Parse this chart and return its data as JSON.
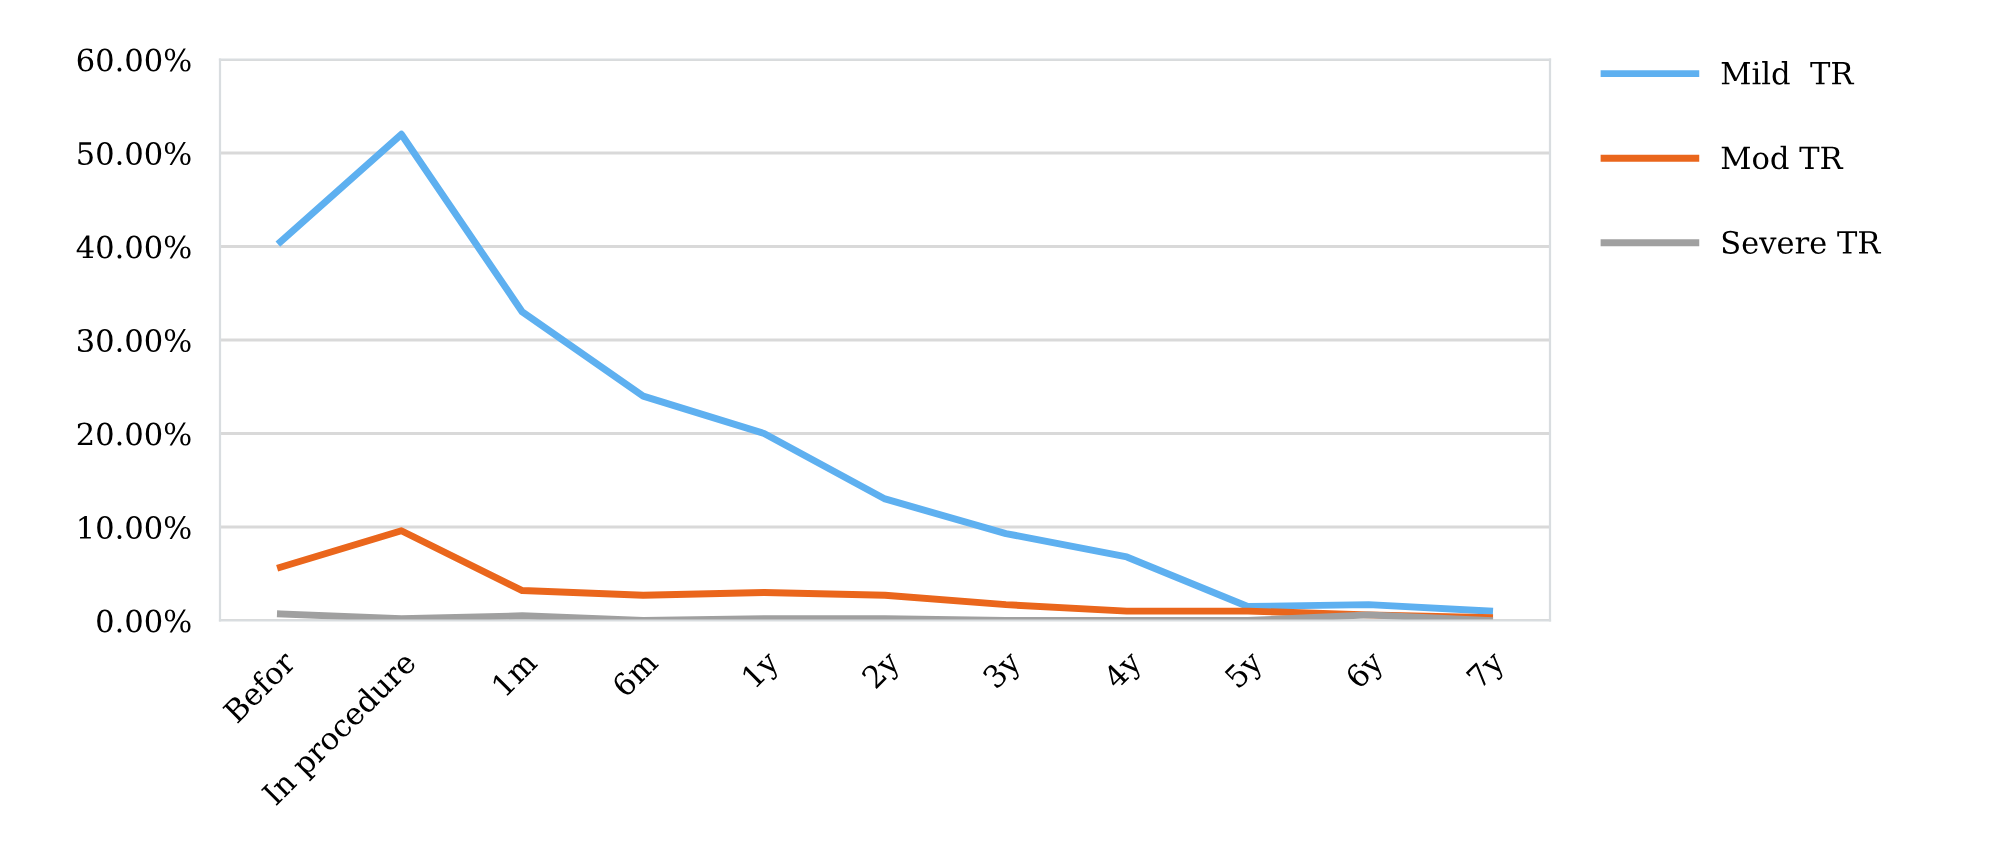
{
  "chart_data": {
    "type": "line",
    "categories": [
      "Befor",
      "In procedure",
      "1m",
      "6m",
      "1y",
      "2y",
      "3y",
      "4y",
      "5y",
      "6y",
      "7y"
    ],
    "series": [
      {
        "name": "Mild  TR",
        "color": "#5eb0f0",
        "values": [
          40.5,
          52,
          33,
          24,
          20,
          13,
          9.3,
          6.8,
          1.5,
          1.7,
          1.0
        ]
      },
      {
        "name": "Mod TR",
        "color": "#ea661c",
        "values": [
          5.7,
          9.6,
          3.2,
          2.7,
          3.0,
          2.7,
          1.7,
          1.0,
          1.0,
          0.6,
          0.3
        ]
      },
      {
        "name": "Severe TR",
        "color": "#a0a0a0",
        "values": [
          0.7,
          0.2,
          0.5,
          0.0,
          0.2,
          0.2,
          0.0,
          0.0,
          0.0,
          0.6,
          0.0
        ]
      }
    ],
    "ylim": [
      0,
      60
    ],
    "yticks": [
      {
        "value": 0,
        "label": "0.00%"
      },
      {
        "value": 10,
        "label": "10.00%"
      },
      {
        "value": 20,
        "label": "20.00%"
      },
      {
        "value": 30,
        "label": "30.00%"
      },
      {
        "value": 40,
        "label": "40.00%"
      },
      {
        "value": 50,
        "label": "50.00%"
      },
      {
        "value": 60,
        "label": "60.00%"
      }
    ],
    "grid": "y",
    "legend": "right",
    "marker": "none",
    "line_style": "solid"
  }
}
